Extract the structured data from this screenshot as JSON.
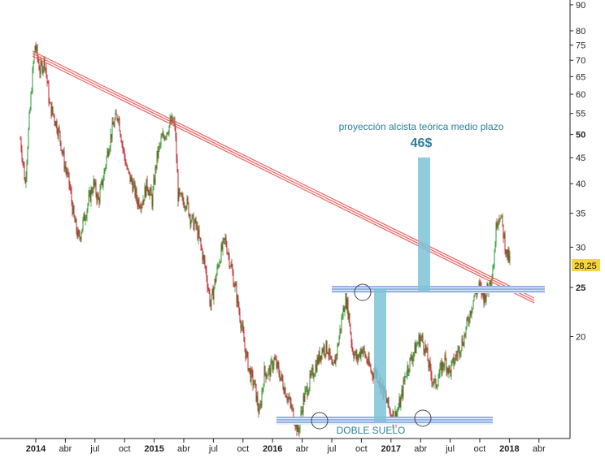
{
  "chart_data": {
    "type": "candlestick",
    "scale": "log",
    "ylim": [
      12.6,
      92
    ],
    "y_ticks": [
      "90",
      "80",
      "75",
      "70",
      "65",
      "60",
      "55",
      "50",
      "45",
      "40",
      "35",
      "30",
      "25",
      "20"
    ],
    "y_ticks_bold": [
      "50",
      "25"
    ],
    "x_ticks": [
      "2014",
      "abr",
      "jul",
      "oct",
      "2015",
      "abr",
      "jul",
      "oct",
      "2016",
      "abr",
      "jul",
      "oct",
      "2017",
      "abr",
      "jul",
      "oct",
      "2018",
      "abr"
    ],
    "x_ticks_bold": [
      "2014",
      "2015",
      "2016",
      "2017",
      "2018"
    ],
    "grid": false,
    "last_price": "28,25",
    "price_path": [
      [
        0,
        49
      ],
      [
        6,
        40
      ],
      [
        12,
        56
      ],
      [
        18,
        75
      ],
      [
        24,
        67
      ],
      [
        30,
        70
      ],
      [
        36,
        57
      ],
      [
        42,
        54
      ],
      [
        48,
        50
      ],
      [
        54,
        44
      ],
      [
        60,
        40
      ],
      [
        66,
        34
      ],
      [
        72,
        31
      ],
      [
        78,
        34
      ],
      [
        84,
        37
      ],
      [
        90,
        40
      ],
      [
        96,
        37
      ],
      [
        102,
        41
      ],
      [
        108,
        47
      ],
      [
        114,
        52
      ],
      [
        120,
        55
      ],
      [
        126,
        47
      ],
      [
        132,
        42
      ],
      [
        138,
        40
      ],
      [
        144,
        37
      ],
      [
        150,
        37
      ],
      [
        156,
        40
      ],
      [
        162,
        37
      ],
      [
        168,
        45
      ],
      [
        174,
        49
      ],
      [
        180,
        51
      ],
      [
        186,
        53
      ],
      [
        190,
        52
      ],
      [
        194,
        38
      ],
      [
        198,
        37
      ],
      [
        204,
        37
      ],
      [
        210,
        34
      ],
      [
        216,
        33
      ],
      [
        222,
        30
      ],
      [
        228,
        27
      ],
      [
        234,
        23
      ],
      [
        240,
        26
      ],
      [
        246,
        29
      ],
      [
        252,
        31
      ],
      [
        258,
        28
      ],
      [
        264,
        25
      ],
      [
        270,
        22
      ],
      [
        276,
        19
      ],
      [
        282,
        17
      ],
      [
        288,
        16
      ],
      [
        294,
        14
      ],
      [
        300,
        17
      ],
      [
        306,
        17
      ],
      [
        312,
        18
      ],
      [
        318,
        17
      ],
      [
        324,
        16
      ],
      [
        330,
        15
      ],
      [
        336,
        14
      ],
      [
        342,
        13
      ],
      [
        348,
        15
      ],
      [
        354,
        16
      ],
      [
        360,
        17
      ],
      [
        366,
        18
      ],
      [
        372,
        19
      ],
      [
        378,
        19
      ],
      [
        384,
        17
      ],
      [
        390,
        19
      ],
      [
        396,
        22
      ],
      [
        400,
        24
      ],
      [
        404,
        22
      ],
      [
        408,
        19
      ],
      [
        414,
        18
      ],
      [
        420,
        19
      ],
      [
        426,
        18
      ],
      [
        432,
        17
      ],
      [
        438,
        17
      ],
      [
        444,
        16
      ],
      [
        450,
        15
      ],
      [
        456,
        14
      ],
      [
        462,
        14
      ],
      [
        468,
        15
      ],
      [
        474,
        17
      ],
      [
        480,
        18
      ],
      [
        486,
        19
      ],
      [
        492,
        20
      ],
      [
        498,
        19
      ],
      [
        504,
        17
      ],
      [
        510,
        16
      ],
      [
        516,
        17
      ],
      [
        522,
        18
      ],
      [
        528,
        17
      ],
      [
        534,
        18
      ],
      [
        540,
        19
      ],
      [
        546,
        20
      ],
      [
        552,
        22
      ],
      [
        558,
        24
      ],
      [
        564,
        25
      ],
      [
        570,
        24
      ],
      [
        576,
        25
      ],
      [
        582,
        28
      ],
      [
        586,
        34
      ],
      [
        590,
        35
      ],
      [
        594,
        32
      ],
      [
        598,
        29
      ],
      [
        602,
        28.25
      ]
    ],
    "candles": {
      "colors": {
        "up": "#2e9a2e",
        "down": "#c0282d"
      }
    },
    "annotations": {
      "projection_label": "proyección alcista teórica medio plazo",
      "projection_target": "46$",
      "double_bottom_label": "DOBLE SUELO"
    }
  },
  "colors": {
    "trendline": "#ee5f5f",
    "support": "#4a78c8",
    "projection_bar": "#7cc2d8",
    "label": "#2f7f9a",
    "price_badge": "#f7d33c"
  }
}
